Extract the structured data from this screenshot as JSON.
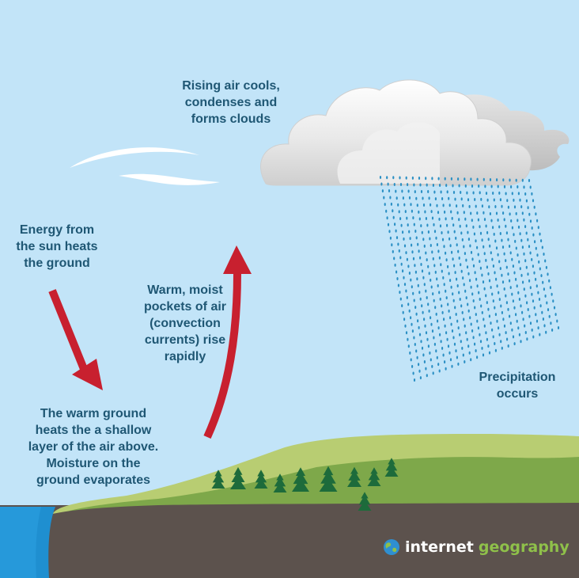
{
  "labels": {
    "clouds": "Rising air cools,\ncondenses and\nforms clouds",
    "sun": "Energy from\nthe sun heats\nthe ground",
    "convection": "Warm, moist\npockets of air\n(convection\ncurrents) rise\nrapidly",
    "precipitation": "Precipitation\noccurs",
    "ground": "The warm ground\nheats the a shallow\nlayer of the air above.\nMoisture on the\nground evaporates"
  },
  "brand": {
    "word1": "internet",
    "word2": "geography"
  },
  "colors": {
    "sky": "#c2e4f8",
    "label_text": "#1f5774",
    "arrow": "#c8202f",
    "rain": "#2a8fc4",
    "ground": "#5c524d",
    "hill_light": "#b8cd72",
    "hill_dark": "#7ea84a",
    "tree": "#1d6b3b",
    "water": "#1f8fd0",
    "brand_accent": "#8fc04a"
  },
  "icons": [
    "globe-icon",
    "tree-icon",
    "wind-swirl-icon",
    "cloud-icon",
    "raindrop-icon"
  ]
}
